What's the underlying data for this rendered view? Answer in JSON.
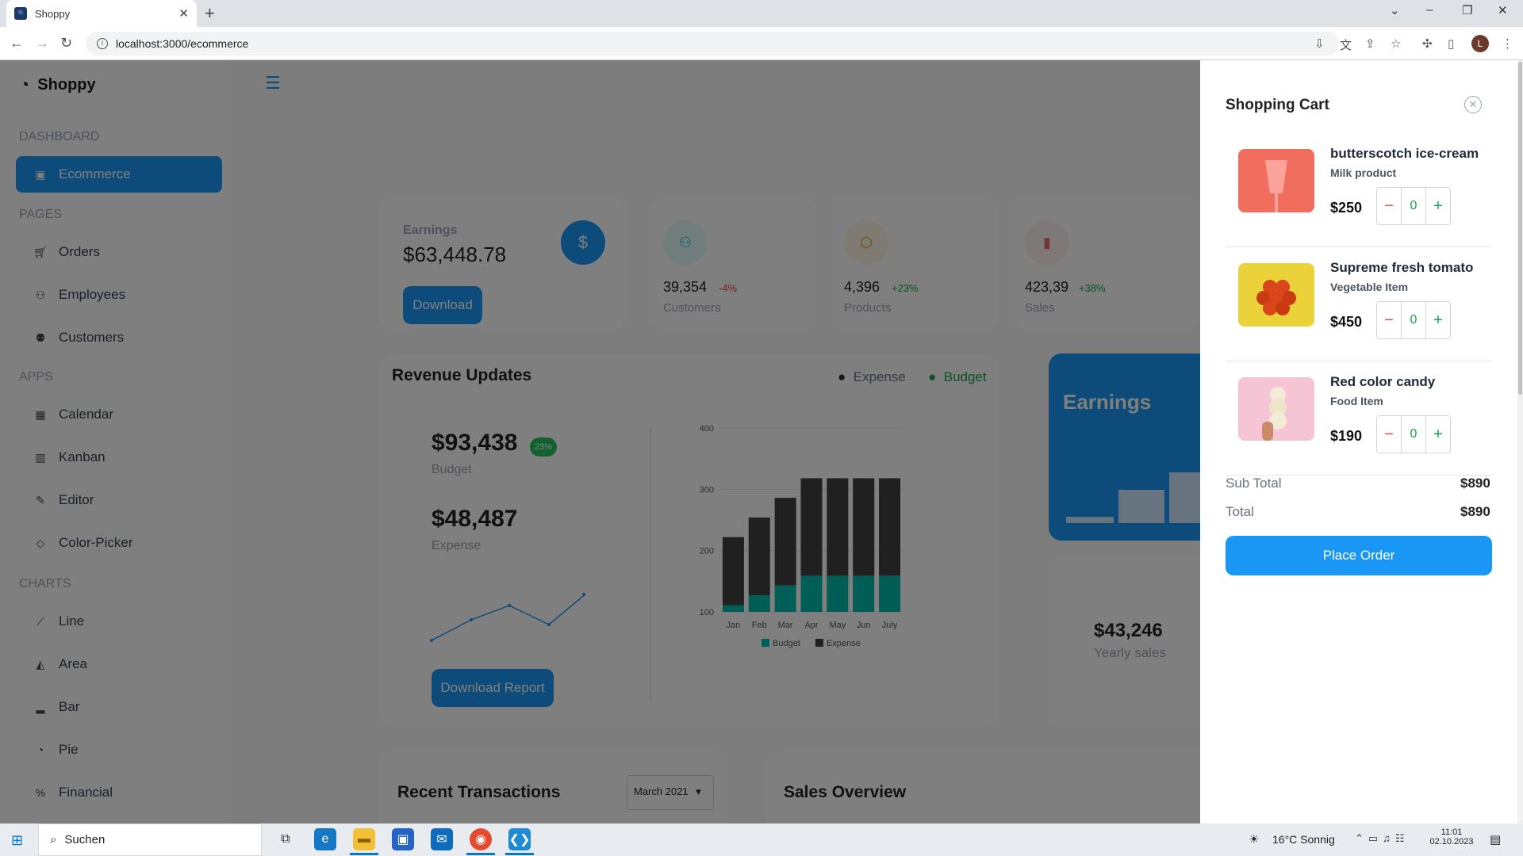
{
  "browser": {
    "tab_title": "Shoppy",
    "url": "localhost:3000/ecommerce",
    "profile_initial": "L"
  },
  "sidebar": {
    "logo": "Shoppy",
    "sections": {
      "dashboard": "DASHBOARD",
      "pages": "PAGES",
      "apps": "APPS",
      "charts": "CHARTS"
    },
    "items": [
      {
        "label": "Ecommerce",
        "icon": "shopping-bag-icon",
        "active": true
      },
      {
        "label": "Orders",
        "icon": "cart-icon"
      },
      {
        "label": "Employees",
        "icon": "employees-icon"
      },
      {
        "label": "Customers",
        "icon": "customers-icon"
      },
      {
        "label": "Calendar",
        "icon": "calendar-icon"
      },
      {
        "label": "Kanban",
        "icon": "kanban-icon"
      },
      {
        "label": "Editor",
        "icon": "editor-icon"
      },
      {
        "label": "Color-Picker",
        "icon": "color-picker-icon"
      },
      {
        "label": "Line",
        "icon": "line-chart-icon"
      },
      {
        "label": "Area",
        "icon": "area-chart-icon"
      },
      {
        "label": "Bar",
        "icon": "bar-chart-icon"
      },
      {
        "label": "Pie",
        "icon": "pie-chart-icon"
      },
      {
        "label": "Financial",
        "icon": "financial-icon"
      }
    ]
  },
  "stats": {
    "earnings_label": "Earnings",
    "earnings_value": "$63,448.78",
    "download": "Download",
    "customers": {
      "value": "39,354",
      "change": "-4%",
      "label": "Customers"
    },
    "products": {
      "value": "4,396",
      "change": "+23%",
      "label": "Products"
    },
    "sales": {
      "value": "423,39",
      "change": "+38%",
      "label": "Sales"
    }
  },
  "revenue": {
    "title": "Revenue Updates",
    "legend_expense": "Expense",
    "legend_budget": "Budget",
    "budget_value": "$93,438",
    "budget_badge": "23%",
    "budget_label": "Budget",
    "expense_value": "$48,487",
    "expense_label": "Expense",
    "download_report": "Download Report"
  },
  "chart_data": {
    "type": "bar",
    "categories": [
      "Jan",
      "Feb",
      "Mar",
      "Apr",
      "May",
      "Jun",
      "July"
    ],
    "series": [
      {
        "name": "Budget",
        "values": [
          111,
          127,
          143,
          159,
          159,
          159,
          159
        ]
      },
      {
        "name": "Expense",
        "values": [
          111,
          127,
          143,
          159,
          159,
          159,
          159
        ]
      }
    ],
    "ylim": [
      100,
      400
    ],
    "yticks": [
      "100",
      "200",
      "300",
      "400"
    ],
    "legend": [
      "Budget",
      "Expense"
    ]
  },
  "earnings_card": {
    "title": "Earnings"
  },
  "yearly": {
    "value": "$43,246",
    "label": "Yearly sales"
  },
  "transactions": {
    "title": "Recent Transactions",
    "month": "March 2021"
  },
  "sales_overview": {
    "title": "Sales Overview"
  },
  "cart": {
    "title": "Shopping Cart",
    "items": [
      {
        "name": "butterscotch ice-cream",
        "category": "Milk product",
        "price": "$250",
        "qty": "0"
      },
      {
        "name": "Supreme fresh tomato",
        "category": "Vegetable Item",
        "price": "$450",
        "qty": "0"
      },
      {
        "name": "Red color candy",
        "category": "Food Item",
        "price": "$190",
        "qty": "0"
      }
    ],
    "subtotal_label": "Sub Total",
    "subtotal_value": "$890",
    "total_label": "Total",
    "total_value": "$890",
    "place_order": "Place Order"
  },
  "taskbar": {
    "search": "Suchen",
    "weather": "16°C  Sonnig",
    "time": "11:01",
    "date": "02.10.2023"
  },
  "colors": {
    "accent": "#1a97f5",
    "budget": "#00bdae",
    "expense": "#404041"
  }
}
